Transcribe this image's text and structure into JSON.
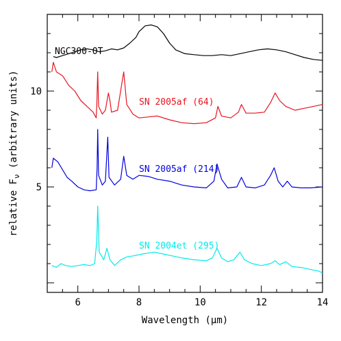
{
  "chart_data": {
    "type": "line",
    "xlabel": "Wavelength (μm)",
    "ylabel": "relative F_ν (arbitrary units)",
    "ylabel_parts": {
      "before": "relative F",
      "sub": "ν",
      "after": " (arbitrary units)"
    },
    "xlim": [
      5.0,
      14.0
    ],
    "ylim": [
      -0.5,
      14.0
    ],
    "x_ticks": [
      6,
      8,
      10,
      12,
      14
    ],
    "y_ticks": [
      5,
      10
    ],
    "grid": false,
    "legend": "none",
    "series": [
      {
        "name": "NGC300-OT",
        "color": "#000000",
        "points": [
          [
            5.2,
            11.8
          ],
          [
            5.3,
            11.75
          ],
          [
            5.5,
            11.85
          ],
          [
            5.7,
            11.95
          ],
          [
            5.9,
            12.05
          ],
          [
            6.1,
            12.15
          ],
          [
            6.3,
            12.2
          ],
          [
            6.5,
            12.15
          ],
          [
            6.7,
            12.05
          ],
          [
            6.9,
            12.1
          ],
          [
            7.1,
            12.2
          ],
          [
            7.3,
            12.15
          ],
          [
            7.5,
            12.25
          ],
          [
            7.7,
            12.5
          ],
          [
            7.9,
            12.8
          ],
          [
            8.0,
            13.1
          ],
          [
            8.2,
            13.4
          ],
          [
            8.4,
            13.45
          ],
          [
            8.6,
            13.35
          ],
          [
            8.8,
            13.0
          ],
          [
            9.0,
            12.5
          ],
          [
            9.2,
            12.15
          ],
          [
            9.5,
            11.95
          ],
          [
            9.8,
            11.9
          ],
          [
            10.1,
            11.85
          ],
          [
            10.4,
            11.85
          ],
          [
            10.7,
            11.9
          ],
          [
            11.0,
            11.85
          ],
          [
            11.3,
            11.95
          ],
          [
            11.6,
            12.05
          ],
          [
            11.9,
            12.15
          ],
          [
            12.2,
            12.2
          ],
          [
            12.5,
            12.15
          ],
          [
            12.8,
            12.05
          ],
          [
            13.1,
            11.9
          ],
          [
            13.4,
            11.75
          ],
          [
            13.7,
            11.65
          ],
          [
            14.0,
            11.6
          ]
        ]
      },
      {
        "name": "SN 2005af (64)",
        "color": "#e8131f",
        "points": [
          [
            5.15,
            11.0
          ],
          [
            5.2,
            11.5
          ],
          [
            5.3,
            11.0
          ],
          [
            5.5,
            10.8
          ],
          [
            5.7,
            10.3
          ],
          [
            5.9,
            10.0
          ],
          [
            6.1,
            9.5
          ],
          [
            6.3,
            9.2
          ],
          [
            6.5,
            8.9
          ],
          [
            6.6,
            8.6
          ],
          [
            6.62,
            9.3
          ],
          [
            6.65,
            11.0
          ],
          [
            6.68,
            9.2
          ],
          [
            6.8,
            8.8
          ],
          [
            6.9,
            9.0
          ],
          [
            7.0,
            9.9
          ],
          [
            7.05,
            9.5
          ],
          [
            7.1,
            8.9
          ],
          [
            7.3,
            9.0
          ],
          [
            7.45,
            10.5
          ],
          [
            7.5,
            11.0
          ],
          [
            7.6,
            9.3
          ],
          [
            7.8,
            8.8
          ],
          [
            8.0,
            8.6
          ],
          [
            8.3,
            8.65
          ],
          [
            8.6,
            8.7
          ],
          [
            9.0,
            8.5
          ],
          [
            9.4,
            8.35
          ],
          [
            9.8,
            8.3
          ],
          [
            10.2,
            8.35
          ],
          [
            10.5,
            8.6
          ],
          [
            10.58,
            9.2
          ],
          [
            10.7,
            8.7
          ],
          [
            11.0,
            8.6
          ],
          [
            11.25,
            8.9
          ],
          [
            11.35,
            9.3
          ],
          [
            11.5,
            8.85
          ],
          [
            11.8,
            8.85
          ],
          [
            12.1,
            8.9
          ],
          [
            12.3,
            9.4
          ],
          [
            12.45,
            9.9
          ],
          [
            12.6,
            9.5
          ],
          [
            12.8,
            9.2
          ],
          [
            13.1,
            9.0
          ],
          [
            13.4,
            9.1
          ],
          [
            13.7,
            9.2
          ],
          [
            14.0,
            9.3
          ]
        ]
      },
      {
        "name": "SN 2005af (214)",
        "color": "#0000dd",
        "points": [
          [
            5.15,
            6.0
          ],
          [
            5.2,
            6.5
          ],
          [
            5.35,
            6.3
          ],
          [
            5.5,
            5.9
          ],
          [
            5.65,
            5.5
          ],
          [
            5.8,
            5.3
          ],
          [
            6.0,
            5.0
          ],
          [
            6.2,
            4.85
          ],
          [
            6.4,
            4.8
          ],
          [
            6.6,
            4.85
          ],
          [
            6.63,
            6.0
          ],
          [
            6.65,
            8.0
          ],
          [
            6.68,
            5.6
          ],
          [
            6.8,
            5.1
          ],
          [
            6.9,
            5.3
          ],
          [
            6.98,
            7.6
          ],
          [
            7.02,
            5.5
          ],
          [
            7.2,
            5.1
          ],
          [
            7.4,
            5.4
          ],
          [
            7.5,
            6.6
          ],
          [
            7.6,
            5.6
          ],
          [
            7.8,
            5.4
          ],
          [
            8.0,
            5.6
          ],
          [
            8.3,
            5.55
          ],
          [
            8.6,
            5.4
          ],
          [
            9.0,
            5.3
          ],
          [
            9.4,
            5.1
          ],
          [
            9.8,
            5.0
          ],
          [
            10.2,
            4.95
          ],
          [
            10.45,
            5.3
          ],
          [
            10.55,
            6.2
          ],
          [
            10.7,
            5.4
          ],
          [
            10.9,
            4.95
          ],
          [
            11.2,
            5.0
          ],
          [
            11.35,
            5.5
          ],
          [
            11.5,
            5.0
          ],
          [
            11.8,
            4.95
          ],
          [
            12.1,
            5.1
          ],
          [
            12.3,
            5.6
          ],
          [
            12.42,
            6.0
          ],
          [
            12.55,
            5.3
          ],
          [
            12.7,
            5.0
          ],
          [
            12.85,
            5.3
          ],
          [
            13.0,
            5.0
          ],
          [
            13.3,
            4.95
          ],
          [
            13.6,
            4.95
          ],
          [
            14.0,
            5.0
          ]
        ]
      },
      {
        "name": "SN 2004et (295)",
        "color": "#00eaea",
        "points": [
          [
            5.15,
            0.9
          ],
          [
            5.3,
            0.8
          ],
          [
            5.45,
            1.0
          ],
          [
            5.6,
            0.9
          ],
          [
            5.8,
            0.85
          ],
          [
            6.0,
            0.9
          ],
          [
            6.2,
            0.95
          ],
          [
            6.4,
            0.9
          ],
          [
            6.55,
            1.0
          ],
          [
            6.62,
            2.2
          ],
          [
            6.65,
            4.0
          ],
          [
            6.7,
            1.6
          ],
          [
            6.85,
            1.2
          ],
          [
            6.95,
            1.8
          ],
          [
            7.05,
            1.2
          ],
          [
            7.2,
            0.9
          ],
          [
            7.4,
            1.2
          ],
          [
            7.6,
            1.35
          ],
          [
            7.8,
            1.4
          ],
          [
            8.1,
            1.5
          ],
          [
            8.5,
            1.6
          ],
          [
            8.8,
            1.5
          ],
          [
            9.1,
            1.4
          ],
          [
            9.4,
            1.3
          ],
          [
            9.8,
            1.2
          ],
          [
            10.2,
            1.15
          ],
          [
            10.4,
            1.3
          ],
          [
            10.55,
            1.8
          ],
          [
            10.7,
            1.3
          ],
          [
            10.9,
            1.1
          ],
          [
            11.1,
            1.2
          ],
          [
            11.3,
            1.6
          ],
          [
            11.45,
            1.2
          ],
          [
            11.7,
            1.0
          ],
          [
            12.0,
            0.9
          ],
          [
            12.3,
            1.0
          ],
          [
            12.45,
            1.15
          ],
          [
            12.6,
            0.95
          ],
          [
            12.8,
            1.1
          ],
          [
            13.0,
            0.85
          ],
          [
            13.3,
            0.8
          ],
          [
            13.6,
            0.7
          ],
          [
            13.9,
            0.6
          ],
          [
            14.0,
            0.5
          ]
        ]
      }
    ]
  }
}
